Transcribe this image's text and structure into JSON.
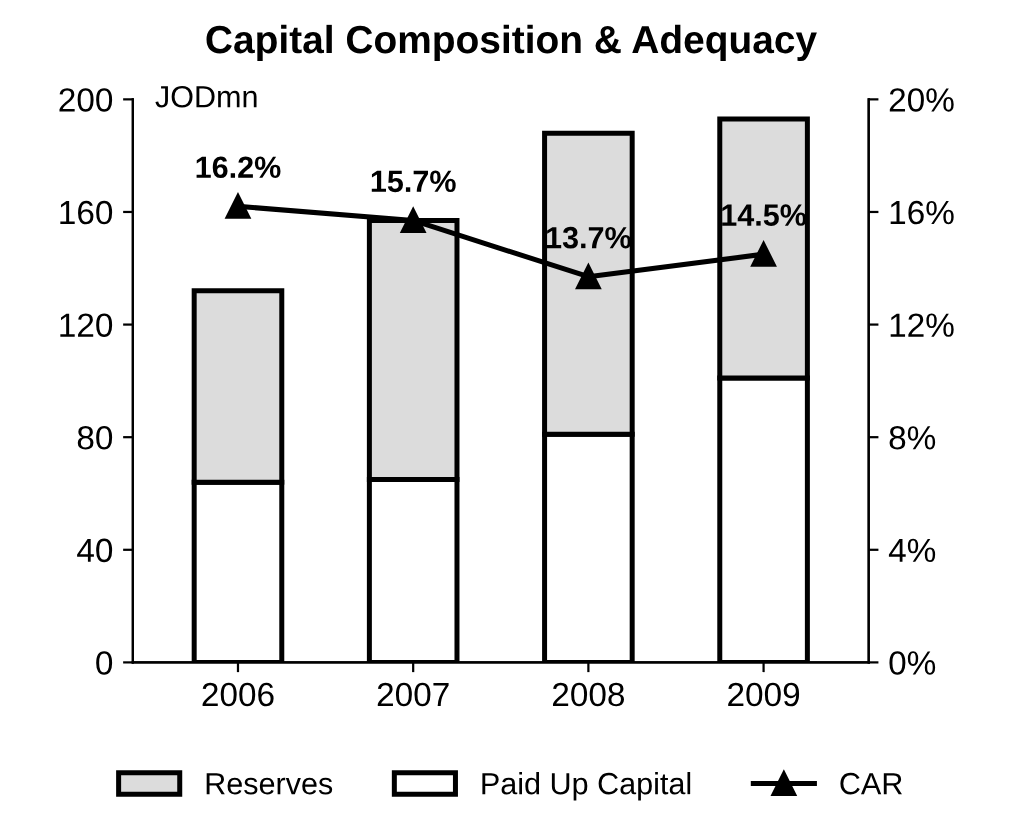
{
  "chart_data": {
    "type": "bar",
    "title": "Capital Composition & Adequacy",
    "ylabel": "JODmn",
    "categories": [
      "2006",
      "2007",
      "2008",
      "2009"
    ],
    "stacked": true,
    "series": [
      {
        "name": "Paid Up Capital",
        "color": "#ffffff",
        "values": [
          64,
          65,
          81,
          101
        ]
      },
      {
        "name": "Reserves",
        "color": "#dcdcdc",
        "values": [
          68,
          92,
          107,
          92
        ]
      },
      {
        "name": "CAR",
        "type": "line",
        "axis": "y2",
        "color": "#000000",
        "marker": "triangle",
        "values": [
          16.2,
          15.7,
          13.7,
          14.5
        ],
        "value_labels": [
          "16.2%",
          "15.7%",
          "13.7%",
          "14.5%"
        ]
      }
    ],
    "ylim": [
      0,
      200
    ],
    "yticks": [
      0,
      40,
      80,
      120,
      160,
      200
    ],
    "y2lim": [
      0,
      20
    ],
    "y2ticks": [
      {
        "value": 0,
        "label": "0%"
      },
      {
        "value": 4,
        "label": "4%"
      },
      {
        "value": 8,
        "label": "8%"
      },
      {
        "value": 12,
        "label": "12%"
      },
      {
        "value": 16,
        "label": "16%"
      },
      {
        "value": 20,
        "label": "20%"
      }
    ],
    "grid": false,
    "legend": "bottom"
  }
}
